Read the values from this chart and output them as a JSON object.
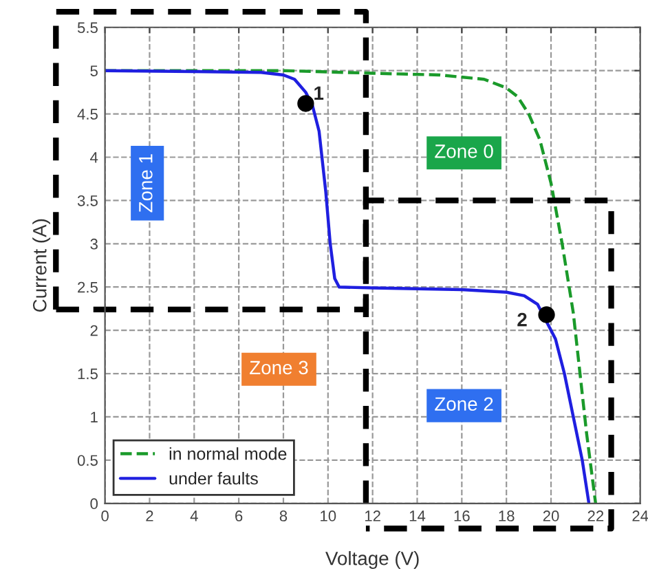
{
  "chart_data": {
    "type": "line",
    "xlabel": "Voltage (V)",
    "ylabel": "Current (A)",
    "xlim": [
      0,
      24
    ],
    "xticks": [
      0,
      2,
      4,
      6,
      8,
      10,
      12,
      14,
      16,
      18,
      20,
      22,
      24
    ],
    "ylim": [
      0,
      5.5
    ],
    "yticks": [
      0,
      0.5,
      1,
      1.5,
      2,
      2.5,
      3,
      3.5,
      4,
      4.5,
      5,
      5.5
    ],
    "grid": true,
    "legend": "bottom left",
    "series": [
      {
        "name": "in normal mode",
        "color": "#1a9a2a",
        "line_style": "dashed",
        "x": [
          0,
          8,
          12,
          15,
          17,
          18,
          18.5,
          19,
          19.5,
          20,
          20.5,
          21,
          21.3,
          21.6,
          21.9,
          22
        ],
        "values": [
          5,
          5,
          4.97,
          4.95,
          4.9,
          4.8,
          4.7,
          4.5,
          4.2,
          3.7,
          3.0,
          2.2,
          1.5,
          0.8,
          0.2,
          0
        ]
      },
      {
        "name": "under faults",
        "color": "#1f1fe0",
        "line_style": "solid",
        "x": [
          0,
          4,
          7,
          8,
          8.5,
          9,
          9.3,
          9.6,
          9.9,
          10.1,
          10.3,
          10.5,
          12,
          14,
          16,
          18,
          18.8,
          19.4,
          20.2,
          20.6,
          21,
          21.4,
          21.7
        ],
        "values": [
          5,
          4.99,
          4.98,
          4.95,
          4.9,
          4.75,
          4.6,
          4.3,
          3.6,
          3.0,
          2.6,
          2.5,
          2.49,
          2.48,
          2.47,
          2.44,
          2.4,
          2.3,
          1.9,
          1.5,
          1.0,
          0.5,
          0
        ]
      },
      {
        "type": "scatter",
        "color": "#000000",
        "x": [
          9.0,
          19.8
        ],
        "values": [
          4.62,
          2.18
        ]
      }
    ],
    "annotations": [
      {
        "text": "1",
        "x": 9.0,
        "y": 4.62
      },
      {
        "text": "2",
        "x": 19.8,
        "y": 2.18
      },
      "Zone 0",
      "Zone 1",
      "Zone 2",
      "Zone 3"
    ]
  }
}
